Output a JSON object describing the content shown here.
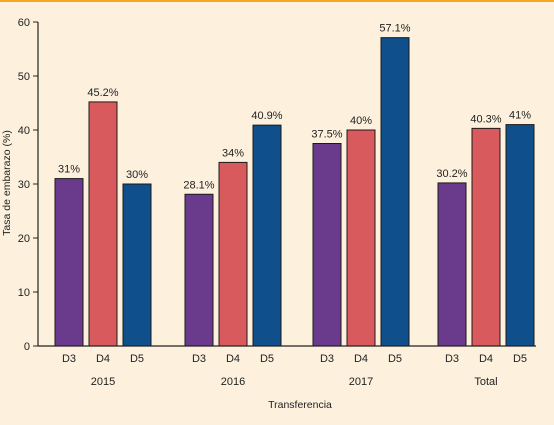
{
  "chart_data": {
    "type": "bar",
    "title": "",
    "xlabel": "Transferencia",
    "ylabel": "Tasa de embarazo (%)",
    "ylim": [
      0,
      60
    ],
    "yticks": [
      0,
      10,
      20,
      30,
      40,
      50,
      60
    ],
    "grid": false,
    "legend": "none",
    "groups": [
      {
        "label": "2015",
        "bars": [
          {
            "category": "D3",
            "value": 31.0,
            "label": "31%"
          },
          {
            "category": "D4",
            "value": 45.2,
            "label": "45.2%"
          },
          {
            "category": "D5",
            "value": 30.0,
            "label": "30%"
          }
        ]
      },
      {
        "label": "2016",
        "bars": [
          {
            "category": "D3",
            "value": 28.1,
            "label": "28.1%"
          },
          {
            "category": "D4",
            "value": 34.0,
            "label": "34%"
          },
          {
            "category": "D5",
            "value": 40.9,
            "label": "40.9%"
          }
        ]
      },
      {
        "label": "2017",
        "bars": [
          {
            "category": "D3",
            "value": 37.5,
            "label": "37.5%"
          },
          {
            "category": "D4",
            "value": 40.0,
            "label": "40%"
          },
          {
            "category": "D5",
            "value": 57.1,
            "label": "57.1%"
          }
        ]
      },
      {
        "label": "Total",
        "bars": [
          {
            "category": "D3",
            "value": 30.2,
            "label": "30.2%"
          },
          {
            "category": "D4",
            "value": 40.3,
            "label": "40.3%"
          },
          {
            "category": "D5",
            "value": 41.0,
            "label": "41%"
          }
        ]
      }
    ],
    "colors": {
      "D3": "#6a3a8c",
      "D4": "#d95a5c",
      "D5": "#0f4f8c",
      "background": "#fdf1de",
      "frame": "#f5a623"
    }
  }
}
